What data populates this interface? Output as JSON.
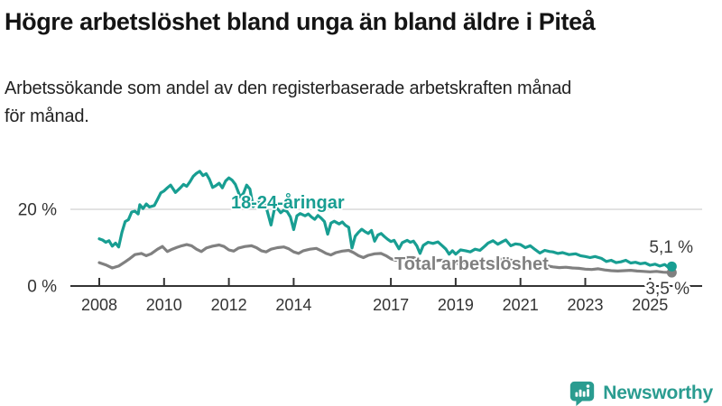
{
  "header": {
    "title": "Högre arbetslöshet bland unga än bland äldre i Piteå",
    "subtitle": "Arbetssökande som andel av den registerbaserade arbetskraften månad för månad."
  },
  "footer": {
    "brand": "Newsworthy"
  },
  "colors": {
    "accent_teal": "#189e92",
    "line_gray": "#808080",
    "axis": "#333333",
    "grid": "#d9d9d9",
    "value_label": "#3a3a3a",
    "brand_teal": "#2a9c90"
  },
  "chart_data": {
    "type": "line",
    "title": "Högre arbetslöshet bland unga än bland äldre i Piteå",
    "subtitle": "Arbetssökande som andel av den registerbaserade arbetskraften månad för månad.",
    "unit": "%",
    "x_range": [
      2008,
      2025.67
    ],
    "ylim": [
      0,
      31
    ],
    "grid": "y-only",
    "legend_position": "inline-labels",
    "yticks": [
      {
        "value": 0,
        "label": "0 %"
      },
      {
        "value": 20,
        "label": "20 %"
      }
    ],
    "xticks": [
      {
        "year": 2008,
        "label": "2008"
      },
      {
        "year": 2010,
        "label": "2010"
      },
      {
        "year": 2012,
        "label": "2012"
      },
      {
        "year": 2014,
        "label": "2014"
      },
      {
        "year": 2017,
        "label": "2017"
      },
      {
        "year": 2019,
        "label": "2019"
      },
      {
        "year": 2021,
        "label": "2021"
      },
      {
        "year": 2023,
        "label": "2023"
      },
      {
        "year": 2025,
        "label": "2025"
      }
    ],
    "series": [
      {
        "name": "Total arbetslöshet",
        "color": "#808080",
        "end_label": "3,5 %",
        "end_value": 3.5,
        "points": [
          [
            2008.0,
            6.1
          ],
          [
            2008.2,
            5.5
          ],
          [
            2008.4,
            4.7
          ],
          [
            2008.6,
            5.2
          ],
          [
            2008.8,
            6.3
          ],
          [
            2008.95,
            7.2
          ],
          [
            2009.1,
            8.2
          ],
          [
            2009.3,
            8.5
          ],
          [
            2009.45,
            7.9
          ],
          [
            2009.6,
            8.4
          ],
          [
            2009.8,
            9.6
          ],
          [
            2009.95,
            10.3
          ],
          [
            2010.1,
            9.0
          ],
          [
            2010.25,
            9.6
          ],
          [
            2010.4,
            10.1
          ],
          [
            2010.55,
            10.5
          ],
          [
            2010.7,
            10.8
          ],
          [
            2010.85,
            10.5
          ],
          [
            2011.0,
            9.6
          ],
          [
            2011.15,
            9.0
          ],
          [
            2011.3,
            9.9
          ],
          [
            2011.5,
            10.4
          ],
          [
            2011.7,
            10.7
          ],
          [
            2011.85,
            10.3
          ],
          [
            2012.0,
            9.4
          ],
          [
            2012.15,
            9.1
          ],
          [
            2012.3,
            9.9
          ],
          [
            2012.5,
            10.3
          ],
          [
            2012.7,
            10.5
          ],
          [
            2012.85,
            10.0
          ],
          [
            2013.0,
            9.2
          ],
          [
            2013.15,
            8.9
          ],
          [
            2013.3,
            9.6
          ],
          [
            2013.5,
            10.0
          ],
          [
            2013.7,
            10.2
          ],
          [
            2013.85,
            9.7
          ],
          [
            2014.0,
            8.9
          ],
          [
            2014.15,
            8.5
          ],
          [
            2014.3,
            9.2
          ],
          [
            2014.5,
            9.6
          ],
          [
            2014.7,
            9.8
          ],
          [
            2014.85,
            9.2
          ],
          [
            2015.0,
            8.5
          ],
          [
            2015.15,
            8.1
          ],
          [
            2015.3,
            8.7
          ],
          [
            2015.5,
            9.1
          ],
          [
            2015.7,
            9.3
          ],
          [
            2015.85,
            8.7
          ],
          [
            2016.0,
            7.9
          ],
          [
            2016.15,
            7.4
          ],
          [
            2016.3,
            8.0
          ],
          [
            2016.5,
            8.4
          ],
          [
            2016.7,
            8.5
          ],
          [
            2016.85,
            7.9
          ],
          [
            2017.0,
            7.1
          ],
          [
            2017.15,
            6.7
          ],
          [
            2017.3,
            7.1
          ],
          [
            2017.5,
            7.4
          ],
          [
            2017.7,
            7.4
          ],
          [
            2017.85,
            6.9
          ],
          [
            2018.0,
            6.4
          ],
          [
            2018.15,
            6.1
          ],
          [
            2018.3,
            6.5
          ],
          [
            2018.5,
            6.7
          ],
          [
            2018.7,
            6.7
          ],
          [
            2018.85,
            6.3
          ],
          [
            2019.0,
            6.0
          ],
          [
            2019.15,
            5.8
          ],
          [
            2019.3,
            6.1
          ],
          [
            2019.5,
            6.3
          ],
          [
            2019.7,
            6.4
          ],
          [
            2019.85,
            6.2
          ],
          [
            2020.0,
            6.1
          ],
          [
            2020.2,
            6.5
          ],
          [
            2020.4,
            7.0
          ],
          [
            2020.6,
            6.9
          ],
          [
            2020.8,
            6.6
          ],
          [
            2021.0,
            6.3
          ],
          [
            2021.2,
            6.0
          ],
          [
            2021.4,
            5.9
          ],
          [
            2021.6,
            5.6
          ],
          [
            2021.8,
            5.3
          ],
          [
            2022.0,
            5.0
          ],
          [
            2022.2,
            4.8
          ],
          [
            2022.4,
            4.9
          ],
          [
            2022.6,
            4.7
          ],
          [
            2022.8,
            4.6
          ],
          [
            2023.0,
            4.4
          ],
          [
            2023.2,
            4.3
          ],
          [
            2023.4,
            4.5
          ],
          [
            2023.6,
            4.2
          ],
          [
            2023.8,
            4.0
          ],
          [
            2024.0,
            3.9
          ],
          [
            2024.2,
            4.0
          ],
          [
            2024.4,
            4.1
          ],
          [
            2024.6,
            3.9
          ],
          [
            2024.8,
            3.8
          ],
          [
            2025.0,
            3.7
          ],
          [
            2025.2,
            3.8
          ],
          [
            2025.4,
            3.6
          ],
          [
            2025.67,
            3.5
          ]
        ]
      },
      {
        "name": "18-24-åringar",
        "color": "#189e92",
        "end_label": "5,1 %",
        "end_value": 5.1,
        "points": [
          [
            2008.0,
            12.3
          ],
          [
            2008.1,
            12.0
          ],
          [
            2008.2,
            11.4
          ],
          [
            2008.3,
            11.8
          ],
          [
            2008.4,
            10.4
          ],
          [
            2008.5,
            11.2
          ],
          [
            2008.6,
            10.2
          ],
          [
            2008.7,
            14.0
          ],
          [
            2008.8,
            16.8
          ],
          [
            2008.9,
            17.3
          ],
          [
            2009.0,
            19.3
          ],
          [
            2009.1,
            19.5
          ],
          [
            2009.2,
            18.8
          ],
          [
            2009.25,
            21.2
          ],
          [
            2009.35,
            20.2
          ],
          [
            2009.45,
            21.4
          ],
          [
            2009.55,
            20.6
          ],
          [
            2009.7,
            21.0
          ],
          [
            2009.8,
            22.6
          ],
          [
            2009.9,
            24.3
          ],
          [
            2010.0,
            24.8
          ],
          [
            2010.1,
            25.6
          ],
          [
            2010.2,
            26.3
          ],
          [
            2010.35,
            24.4
          ],
          [
            2010.5,
            25.6
          ],
          [
            2010.6,
            26.5
          ],
          [
            2010.7,
            26.0
          ],
          [
            2010.8,
            27.2
          ],
          [
            2010.9,
            28.6
          ],
          [
            2011.0,
            29.4
          ],
          [
            2011.1,
            29.9
          ],
          [
            2011.2,
            28.8
          ],
          [
            2011.3,
            29.3
          ],
          [
            2011.4,
            27.8
          ],
          [
            2011.5,
            25.7
          ],
          [
            2011.6,
            26.2
          ],
          [
            2011.7,
            26.8
          ],
          [
            2011.8,
            25.6
          ],
          [
            2011.9,
            27.4
          ],
          [
            2012.0,
            28.2
          ],
          [
            2012.1,
            27.6
          ],
          [
            2012.2,
            26.5
          ],
          [
            2012.35,
            23.2
          ],
          [
            2012.45,
            24.2
          ],
          [
            2012.55,
            26.3
          ],
          [
            2012.65,
            25.3
          ],
          [
            2012.75,
            20.7
          ],
          [
            2012.85,
            21.6
          ],
          [
            2012.95,
            22.3
          ],
          [
            2013.05,
            22.4
          ],
          [
            2013.15,
            20.6
          ],
          [
            2013.3,
            15.9
          ],
          [
            2013.4,
            19.9
          ],
          [
            2013.5,
            20.2
          ],
          [
            2013.6,
            19.1
          ],
          [
            2013.7,
            19.8
          ],
          [
            2013.8,
            19.4
          ],
          [
            2013.9,
            18.0
          ],
          [
            2014.0,
            14.7
          ],
          [
            2014.1,
            18.3
          ],
          [
            2014.2,
            18.9
          ],
          [
            2014.35,
            18.3
          ],
          [
            2014.45,
            18.8
          ],
          [
            2014.55,
            18.0
          ],
          [
            2014.65,
            17.4
          ],
          [
            2014.75,
            18.4
          ],
          [
            2014.85,
            17.7
          ],
          [
            2014.95,
            16.8
          ],
          [
            2015.05,
            13.5
          ],
          [
            2015.15,
            16.4
          ],
          [
            2015.25,
            16.9
          ],
          [
            2015.4,
            16.2
          ],
          [
            2015.5,
            16.7
          ],
          [
            2015.6,
            15.8
          ],
          [
            2015.7,
            15.3
          ],
          [
            2015.8,
            9.9
          ],
          [
            2015.9,
            13.0
          ],
          [
            2016.0,
            14.0
          ],
          [
            2016.1,
            14.8
          ],
          [
            2016.2,
            14.2
          ],
          [
            2016.3,
            13.7
          ],
          [
            2016.4,
            14.5
          ],
          [
            2016.5,
            11.7
          ],
          [
            2016.6,
            13.3
          ],
          [
            2016.7,
            13.7
          ],
          [
            2016.8,
            12.9
          ],
          [
            2016.9,
            12.2
          ],
          [
            2017.0,
            11.6
          ],
          [
            2017.1,
            11.9
          ],
          [
            2017.25,
            9.7
          ],
          [
            2017.35,
            11.3
          ],
          [
            2017.5,
            11.9
          ],
          [
            2017.6,
            11.4
          ],
          [
            2017.7,
            11.7
          ],
          [
            2017.8,
            10.5
          ],
          [
            2017.9,
            8.5
          ],
          [
            2018.0,
            10.6
          ],
          [
            2018.15,
            11.4
          ],
          [
            2018.3,
            11.1
          ],
          [
            2018.45,
            11.5
          ],
          [
            2018.6,
            10.4
          ],
          [
            2018.7,
            9.6
          ],
          [
            2018.8,
            8.3
          ],
          [
            2018.9,
            9.2
          ],
          [
            2019.0,
            8.3
          ],
          [
            2019.15,
            9.4
          ],
          [
            2019.3,
            9.2
          ],
          [
            2019.45,
            8.9
          ],
          [
            2019.6,
            9.6
          ],
          [
            2019.75,
            9.3
          ],
          [
            2019.9,
            10.4
          ],
          [
            2020.0,
            11.2
          ],
          [
            2020.15,
            11.8
          ],
          [
            2020.3,
            10.9
          ],
          [
            2020.45,
            11.6
          ],
          [
            2020.55,
            12.0
          ],
          [
            2020.7,
            10.5
          ],
          [
            2020.85,
            11.0
          ],
          [
            2021.0,
            10.8
          ],
          [
            2021.15,
            10.0
          ],
          [
            2021.3,
            10.5
          ],
          [
            2021.45,
            9.5
          ],
          [
            2021.6,
            8.6
          ],
          [
            2021.75,
            9.3
          ],
          [
            2021.9,
            9.0
          ],
          [
            2022.0,
            8.9
          ],
          [
            2022.15,
            8.5
          ],
          [
            2022.3,
            8.7
          ],
          [
            2022.5,
            8.2
          ],
          [
            2022.7,
            8.4
          ],
          [
            2022.85,
            7.9
          ],
          [
            2023.0,
            7.7
          ],
          [
            2023.15,
            7.4
          ],
          [
            2023.3,
            7.7
          ],
          [
            2023.5,
            7.2
          ],
          [
            2023.65,
            6.4
          ],
          [
            2023.8,
            6.7
          ],
          [
            2023.95,
            6.1
          ],
          [
            2024.1,
            6.3
          ],
          [
            2024.25,
            6.7
          ],
          [
            2024.4,
            6.0
          ],
          [
            2024.55,
            6.2
          ],
          [
            2024.7,
            5.8
          ],
          [
            2024.85,
            6.0
          ],
          [
            2025.0,
            5.4
          ],
          [
            2025.15,
            5.7
          ],
          [
            2025.3,
            5.2
          ],
          [
            2025.45,
            5.6
          ],
          [
            2025.55,
            5.0
          ],
          [
            2025.67,
            5.1
          ]
        ]
      }
    ]
  }
}
